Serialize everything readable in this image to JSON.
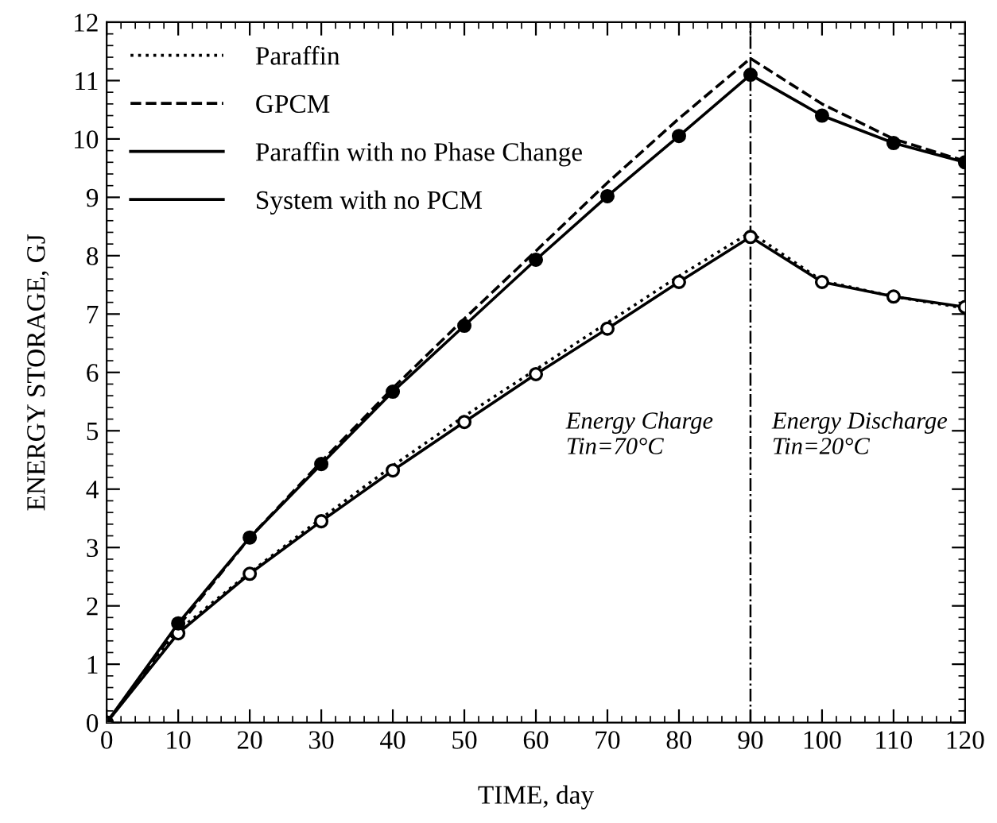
{
  "chart_data": {
    "type": "line",
    "xlabel": "TIME, day",
    "ylabel": "ENERGY STORAGE, GJ",
    "x": [
      0,
      10,
      20,
      30,
      40,
      50,
      60,
      70,
      80,
      90,
      100,
      110,
      120
    ],
    "series": [
      {
        "name": "Paraffin",
        "color": "#000000",
        "line_style": "dotted",
        "marker": "none",
        "values": [
          0,
          1.58,
          2.57,
          3.5,
          4.4,
          5.25,
          6.05,
          6.85,
          7.65,
          8.4,
          7.57,
          7.3,
          7.1
        ]
      },
      {
        "name": "GPCM",
        "color": "#000000",
        "line_style": "dashed",
        "marker": "none",
        "values": [
          0,
          1.65,
          3.17,
          4.47,
          5.73,
          6.92,
          8.08,
          9.25,
          10.35,
          11.38,
          10.6,
          10.0,
          9.62
        ]
      },
      {
        "name": "Paraffin with no Phase Change",
        "color": "#000000",
        "line_style": "solid",
        "marker": "circle",
        "colors": [
          "#ffffff",
          "#ffffff",
          "#ffffff",
          "#ffffff",
          "#ffffff",
          "#ffffff",
          "#ffffff",
          "#ffffff",
          "#ffffff",
          "#ffffff",
          "#ffffff",
          "#ffffff",
          "#ffffff"
        ],
        "values": [
          0,
          1.53,
          2.55,
          3.45,
          4.32,
          5.15,
          5.97,
          6.75,
          7.55,
          8.32,
          7.55,
          7.3,
          7.12
        ]
      },
      {
        "name": "System with no PCM",
        "color": "#000000",
        "line_style": "solid",
        "marker": "circle",
        "colors": [
          "#000000",
          "#000000",
          "#000000",
          "#000000",
          "#000000",
          "#000000",
          "#000000",
          "#000000",
          "#000000",
          "#000000",
          "#000000",
          "#000000",
          "#000000"
        ],
        "values": [
          0,
          1.7,
          3.17,
          4.43,
          5.67,
          6.8,
          7.93,
          9.02,
          10.05,
          11.1,
          10.4,
          9.93,
          9.6
        ]
      }
    ],
    "xlim": [
      0,
      120
    ],
    "xticks": [
      0,
      10,
      20,
      30,
      40,
      50,
      60,
      70,
      80,
      90,
      100,
      110,
      120
    ],
    "ylim": [
      0,
      12
    ],
    "yticks": [
      0,
      1,
      2,
      3,
      4,
      5,
      6,
      7,
      8,
      9,
      10,
      11,
      12
    ],
    "ref_lines": [
      {
        "axis": "x",
        "value": 90,
        "color": "#000000"
      }
    ],
    "annotations": [
      "Energy Charge\nTin=70°C",
      "Energy Discharge\nTin=20°C"
    ],
    "grid": false,
    "legend": "top left"
  }
}
